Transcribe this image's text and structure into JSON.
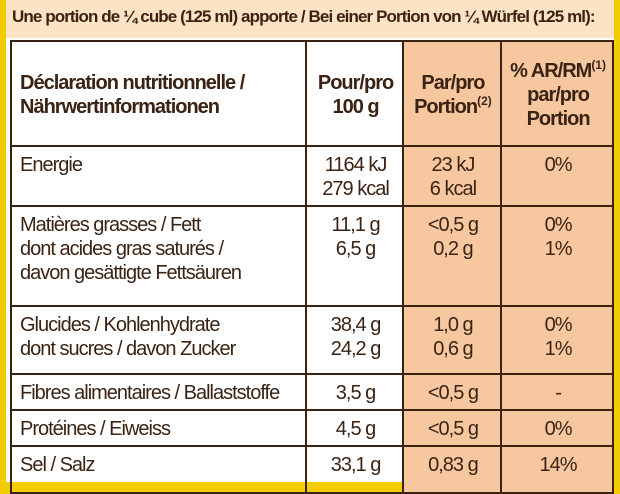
{
  "title": "Une portion de ¼ cube (125 ml) apporte / Bei einer Portion von ¼ Würfel (125 ml):",
  "table": {
    "header": [
      [
        "Déclaration nutritionnelle /",
        "Nährwertinformationen"
      ],
      [
        "Pour/pro",
        "100 g"
      ],
      [
        "Par/pro",
        {
          "text": "Portion",
          "sup": "(2)"
        }
      ],
      [
        {
          "text": "% AR/RM",
          "sup": "(1)"
        },
        "par/pro",
        "Portion"
      ]
    ],
    "rows": [
      [
        [
          "Energie"
        ],
        [
          "1164 kJ",
          "279 kcal"
        ],
        [
          "23 kJ",
          "6 kcal"
        ],
        [
          "0%"
        ]
      ],
      [
        [
          "Matières grasses / Fett",
          "dont acides gras saturés /",
          "davon gesättigte Fettsäuren"
        ],
        [
          "11,1 g",
          "6,5 g"
        ],
        [
          "<0,5 g",
          "0,2 g"
        ],
        [
          "0%",
          "1%"
        ]
      ],
      [
        [
          "Glucides / Kohlenhydrate",
          "dont sucres / davon Zucker"
        ],
        [
          "38,4 g",
          "24,2 g"
        ],
        [
          "1,0 g",
          "0,6 g"
        ],
        [
          "0%",
          "1%"
        ]
      ],
      [
        [
          "Fibres alimentaires / Ballaststoffe"
        ],
        [
          "3,5 g"
        ],
        [
          "<0,5 g"
        ],
        [
          "-"
        ]
      ],
      [
        [
          "Protéines / Eiweiss"
        ],
        [
          "4,5 g"
        ],
        [
          "<0,5 g"
        ],
        [
          "0%"
        ]
      ],
      [
        [
          "Sel / Salz"
        ],
        [
          "33,1 g"
        ],
        [
          "0,83 g"
        ],
        [
          "14%"
        ]
      ]
    ]
  }
}
